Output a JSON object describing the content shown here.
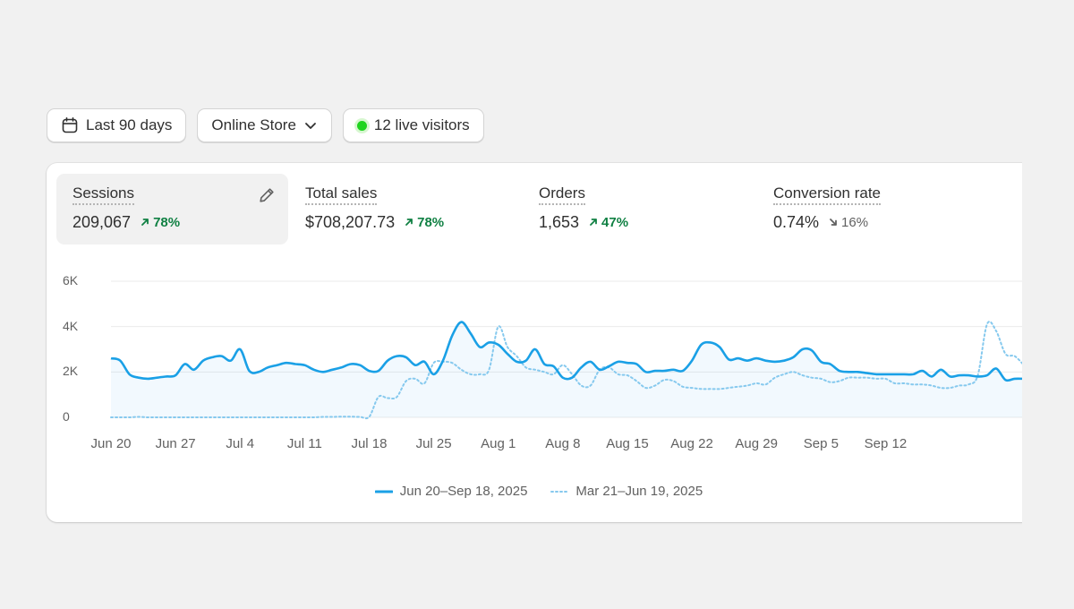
{
  "filters": {
    "date_range": "Last 90 days",
    "channel": "Online Store",
    "live_visitors": "12 live visitors"
  },
  "metrics": [
    {
      "title": "Sessions",
      "value": "209,067",
      "delta": "78%",
      "direction": "up"
    },
    {
      "title": "Total sales",
      "value": "$708,207.73",
      "delta": "78%",
      "direction": "up"
    },
    {
      "title": "Orders",
      "value": "1,653",
      "delta": "47%",
      "direction": "up"
    },
    {
      "title": "Conversion rate",
      "value": "0.74%",
      "delta": "16%",
      "direction": "down"
    }
  ],
  "colors": {
    "current": "#1aa0e6",
    "previous": "#86c9ee",
    "positive": "#108043",
    "live": "#1fd41f"
  },
  "chart_data": {
    "type": "line",
    "ylim": [
      0,
      6000
    ],
    "y_ticks": [
      "0",
      "2K",
      "4K",
      "6K"
    ],
    "y_tick_values": [
      0,
      2000,
      4000,
      6000
    ],
    "x_ticks": [
      "Jun 20",
      "Jun 27",
      "Jul 4",
      "Jul 11",
      "Jul 18",
      "Jul 25",
      "Aug 1",
      "Aug 8",
      "Aug 15",
      "Aug 22",
      "Aug 29",
      "Sep 5",
      "Sep 12"
    ],
    "x_tick_dates": [
      "2025-06-20",
      "2025-06-27",
      "2025-07-04",
      "2025-07-11",
      "2025-07-18",
      "2025-07-25",
      "2025-08-01",
      "2025-08-08",
      "2025-08-15",
      "2025-08-22",
      "2025-08-29",
      "2025-09-05",
      "2025-09-12"
    ],
    "grid": true,
    "legend": "bottom-center",
    "series": [
      {
        "name": "Jun 20–Sep 18, 2025",
        "style": "solid",
        "values": [
          2600,
          2500,
          1900,
          1750,
          1700,
          1750,
          1800,
          1850,
          2350,
          2100,
          2500,
          2650,
          2700,
          2500,
          3000,
          2050,
          2000,
          2200,
          2300,
          2400,
          2350,
          2300,
          2100,
          2000,
          2100,
          2200,
          2350,
          2300,
          2050,
          2050,
          2500,
          2700,
          2650,
          2300,
          2450,
          1900,
          2500,
          3600,
          4200,
          3700,
          3100,
          3300,
          3200,
          2800,
          2450,
          2500,
          3000,
          2350,
          2250,
          1750,
          1750,
          2200,
          2450,
          2100,
          2250,
          2450,
          2400,
          2350,
          2000,
          2050,
          2050,
          2100,
          2050,
          2500,
          3200,
          3300,
          3100,
          2550,
          2600,
          2500,
          2600,
          2500,
          2450,
          2500,
          2650,
          3000,
          2950,
          2450,
          2350,
          2050,
          2000,
          2000,
          1950,
          1900,
          1900,
          1900,
          1900,
          1900,
          2050,
          1800,
          2100,
          1800,
          1850,
          1850,
          1800,
          1850,
          2150,
          1650,
          1700,
          1700
        ]
      },
      {
        "name": "Mar 21–Jun 19, 2025",
        "style": "dotted",
        "values": [
          0,
          0,
          0,
          20,
          0,
          0,
          0,
          0,
          0,
          0,
          0,
          0,
          0,
          0,
          0,
          0,
          0,
          0,
          0,
          0,
          0,
          0,
          0,
          20,
          20,
          30,
          30,
          20,
          20,
          900,
          850,
          900,
          1600,
          1700,
          1500,
          2400,
          2450,
          2400,
          2100,
          1900,
          1900,
          2100,
          4000,
          3100,
          2700,
          2200,
          2100,
          2000,
          1900,
          2300,
          1900,
          1400,
          1400,
          2100,
          2200,
          1900,
          1850,
          1600,
          1300,
          1400,
          1650,
          1600,
          1350,
          1300,
          1250,
          1250,
          1250,
          1300,
          1350,
          1400,
          1500,
          1450,
          1750,
          1900,
          2000,
          1850,
          1750,
          1700,
          1550,
          1600,
          1750,
          1750,
          1750,
          1700,
          1700,
          1500,
          1500,
          1450,
          1450,
          1400,
          1300,
          1300,
          1400,
          1450,
          1850,
          4100,
          3800,
          2800,
          2700,
          2300
        ]
      }
    ]
  }
}
